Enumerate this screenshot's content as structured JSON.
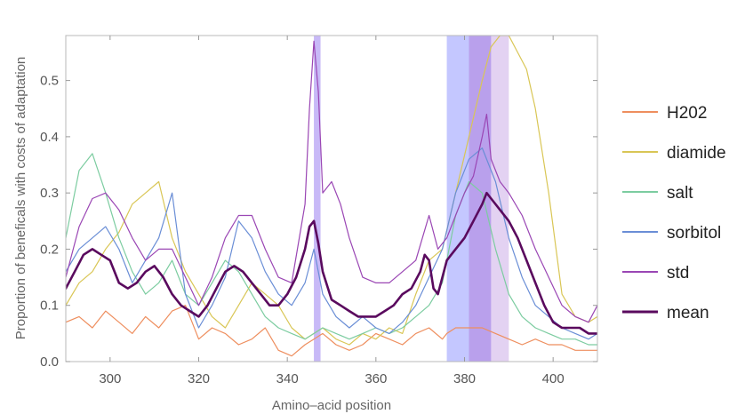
{
  "chart_data": {
    "type": "line",
    "title": "",
    "xlabel": "Amino–acid position",
    "ylabel": "Proportion of beneficals with costs of adaptation",
    "xlim": [
      290,
      410
    ],
    "ylim": [
      0,
      0.58
    ],
    "xticks": [
      300,
      320,
      340,
      360,
      380,
      400
    ],
    "yticks": [
      0.0,
      0.1,
      0.2,
      0.3,
      0.4,
      0.5
    ],
    "ytick_labels": [
      "0.0",
      "0.1",
      "0.2",
      "0.3",
      "0.4",
      "0.5"
    ],
    "grid": false,
    "legend_position": "right",
    "highlight_bands": [
      {
        "x": [
          346,
          347.5
        ],
        "color": "#9a80f0",
        "opacity": 0.55
      },
      {
        "x": [
          376,
          381
        ],
        "color": "#8a90ff",
        "opacity": 0.5
      },
      {
        "x": [
          381,
          386
        ],
        "color": "#8a60e0",
        "opacity": 0.6
      },
      {
        "x": [
          386,
          390
        ],
        "color": "#c8a6e6",
        "opacity": 0.5
      }
    ],
    "series": [
      {
        "name": "H202",
        "color": "#ee8e5e",
        "width": 1.2,
        "x": [
          290,
          293,
          296,
          299,
          302,
          305,
          308,
          311,
          314,
          317,
          320,
          323,
          326,
          329,
          332,
          335,
          338,
          341,
          344,
          346,
          348,
          351,
          354,
          357,
          360,
          363,
          366,
          369,
          372,
          375,
          376,
          378,
          381,
          384,
          387,
          390,
          393,
          396,
          399,
          402,
          405,
          408,
          410
        ],
        "y": [
          0.07,
          0.08,
          0.06,
          0.09,
          0.07,
          0.05,
          0.08,
          0.06,
          0.09,
          0.1,
          0.04,
          0.06,
          0.05,
          0.03,
          0.04,
          0.06,
          0.02,
          0.01,
          0.03,
          0.04,
          0.05,
          0.03,
          0.02,
          0.03,
          0.05,
          0.04,
          0.03,
          0.05,
          0.06,
          0.04,
          0.05,
          0.06,
          0.06,
          0.06,
          0.05,
          0.04,
          0.03,
          0.04,
          0.03,
          0.03,
          0.02,
          0.02,
          0.02
        ]
      },
      {
        "name": "diamide",
        "color": "#d9c655",
        "width": 1.2,
        "x": [
          290,
          293,
          296,
          299,
          302,
          305,
          308,
          311,
          314,
          317,
          320,
          323,
          326,
          329,
          332,
          335,
          338,
          341,
          344,
          346,
          348,
          351,
          354,
          357,
          360,
          363,
          366,
          369,
          372,
          375,
          378,
          381,
          384,
          386,
          388,
          390,
          392,
          394,
          396,
          399,
          402,
          405,
          408,
          410
        ],
        "y": [
          0.1,
          0.14,
          0.16,
          0.2,
          0.23,
          0.28,
          0.3,
          0.32,
          0.22,
          0.16,
          0.12,
          0.08,
          0.06,
          0.1,
          0.14,
          0.12,
          0.1,
          0.06,
          0.04,
          0.05,
          0.06,
          0.04,
          0.03,
          0.05,
          0.04,
          0.06,
          0.05,
          0.12,
          0.18,
          0.2,
          0.3,
          0.4,
          0.5,
          0.56,
          0.58,
          0.58,
          0.55,
          0.52,
          0.45,
          0.3,
          0.12,
          0.08,
          0.07,
          0.08
        ]
      },
      {
        "name": "salt",
        "color": "#7ccca0",
        "width": 1.2,
        "x": [
          290,
          293,
          296,
          299,
          302,
          305,
          308,
          311,
          314,
          317,
          320,
          323,
          326,
          329,
          332,
          335,
          338,
          341,
          344,
          346,
          348,
          351,
          354,
          357,
          360,
          363,
          366,
          369,
          372,
          375,
          378,
          381,
          384,
          387,
          390,
          393,
          396,
          399,
          402,
          405,
          408,
          410
        ],
        "y": [
          0.22,
          0.34,
          0.37,
          0.3,
          0.22,
          0.16,
          0.12,
          0.14,
          0.18,
          0.12,
          0.1,
          0.14,
          0.18,
          0.16,
          0.12,
          0.08,
          0.06,
          0.05,
          0.04,
          0.05,
          0.06,
          0.05,
          0.04,
          0.05,
          0.06,
          0.05,
          0.06,
          0.08,
          0.1,
          0.14,
          0.26,
          0.32,
          0.3,
          0.2,
          0.12,
          0.08,
          0.06,
          0.05,
          0.04,
          0.04,
          0.03,
          0.03
        ]
      },
      {
        "name": "sorbitol",
        "color": "#6a8ed6",
        "width": 1.2,
        "x": [
          290,
          293,
          296,
          299,
          302,
          305,
          308,
          311,
          314,
          317,
          320,
          323,
          326,
          329,
          332,
          335,
          338,
          341,
          344,
          346,
          348,
          351,
          354,
          357,
          360,
          363,
          366,
          369,
          372,
          375,
          378,
          381,
          384,
          387,
          390,
          393,
          396,
          399,
          402,
          405,
          408,
          410
        ],
        "y": [
          0.16,
          0.2,
          0.22,
          0.24,
          0.2,
          0.14,
          0.18,
          0.22,
          0.3,
          0.12,
          0.06,
          0.1,
          0.15,
          0.25,
          0.22,
          0.16,
          0.12,
          0.1,
          0.14,
          0.2,
          0.12,
          0.08,
          0.06,
          0.08,
          0.06,
          0.05,
          0.07,
          0.1,
          0.15,
          0.2,
          0.3,
          0.36,
          0.38,
          0.32,
          0.22,
          0.15,
          0.1,
          0.08,
          0.06,
          0.05,
          0.04,
          0.05
        ]
      },
      {
        "name": "std",
        "color": "#9a46b4",
        "width": 1.2,
        "x": [
          290,
          293,
          296,
          299,
          302,
          305,
          308,
          311,
          314,
          317,
          320,
          323,
          326,
          329,
          332,
          335,
          338,
          341,
          344,
          345,
          346,
          347,
          348,
          350,
          352,
          354,
          357,
          360,
          363,
          366,
          369,
          372,
          374,
          376,
          378,
          380,
          382,
          384,
          385,
          386,
          387,
          388,
          390,
          393,
          396,
          399,
          402,
          405,
          408,
          410
        ],
        "y": [
          0.15,
          0.24,
          0.29,
          0.3,
          0.27,
          0.22,
          0.18,
          0.2,
          0.2,
          0.15,
          0.1,
          0.15,
          0.22,
          0.26,
          0.26,
          0.2,
          0.15,
          0.14,
          0.28,
          0.45,
          0.57,
          0.48,
          0.3,
          0.32,
          0.28,
          0.22,
          0.15,
          0.14,
          0.14,
          0.16,
          0.18,
          0.26,
          0.2,
          0.22,
          0.26,
          0.3,
          0.33,
          0.4,
          0.44,
          0.36,
          0.34,
          0.32,
          0.3,
          0.26,
          0.2,
          0.15,
          0.1,
          0.08,
          0.07,
          0.1
        ]
      },
      {
        "name": "mean",
        "color": "#5a0a5e",
        "width": 2.6,
        "x": [
          290,
          292,
          294,
          296,
          298,
          300,
          302,
          304,
          306,
          308,
          310,
          312,
          314,
          316,
          318,
          320,
          322,
          324,
          326,
          328,
          330,
          332,
          334,
          336,
          338,
          340,
          342,
          344,
          345,
          346,
          347,
          348,
          350,
          352,
          354,
          356,
          358,
          360,
          362,
          364,
          366,
          368,
          370,
          371,
          372,
          373,
          374,
          376,
          378,
          380,
          382,
          384,
          385,
          386,
          388,
          390,
          392,
          394,
          396,
          398,
          400,
          402,
          404,
          406,
          408,
          410
        ],
        "y": [
          0.13,
          0.16,
          0.19,
          0.2,
          0.19,
          0.18,
          0.14,
          0.13,
          0.14,
          0.16,
          0.17,
          0.15,
          0.12,
          0.1,
          0.09,
          0.08,
          0.1,
          0.13,
          0.16,
          0.17,
          0.16,
          0.14,
          0.12,
          0.1,
          0.1,
          0.12,
          0.15,
          0.2,
          0.24,
          0.25,
          0.21,
          0.16,
          0.11,
          0.1,
          0.09,
          0.08,
          0.08,
          0.08,
          0.09,
          0.1,
          0.12,
          0.13,
          0.16,
          0.19,
          0.18,
          0.13,
          0.12,
          0.18,
          0.2,
          0.22,
          0.25,
          0.28,
          0.3,
          0.29,
          0.27,
          0.25,
          0.22,
          0.18,
          0.14,
          0.1,
          0.07,
          0.06,
          0.06,
          0.06,
          0.05,
          0.05
        ]
      }
    ]
  }
}
